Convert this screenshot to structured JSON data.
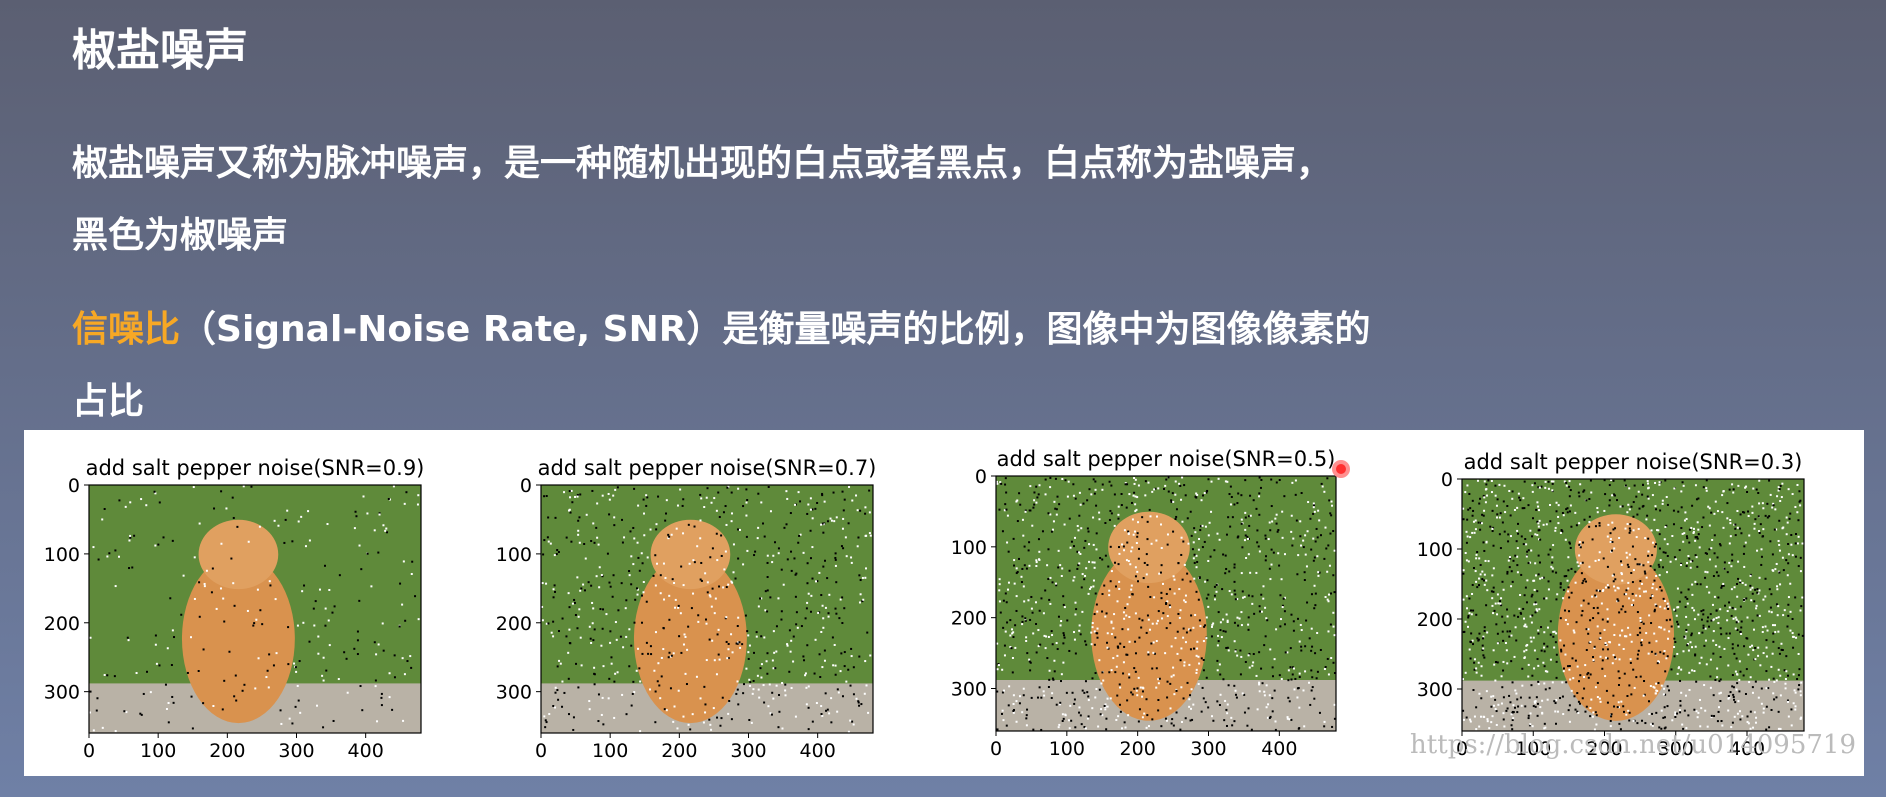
{
  "slide": {
    "title": "椒盐噪声",
    "paragraph1": [
      "椒盐噪声又称为脉冲噪声，是一种随机出现的白点或者黑点，白点称为盐噪声，",
      "黑色为椒噪声"
    ],
    "paragraph2": {
      "highlight": "信噪比",
      "lines": [
        "（Signal-Noise Rate, SNR）是衡量噪声的比例，图像中为图像像素的",
        "占比"
      ]
    }
  },
  "chart_data": [
    {
      "type": "image",
      "title": "add salt pepper noise(SNR=0.9)",
      "xlim": [
        0,
        480
      ],
      "ylim": [
        0,
        360
      ],
      "y_inverted": true,
      "xticks": [
        0,
        100,
        200,
        300,
        400
      ],
      "yticks": [
        0,
        100,
        200,
        300
      ]
    },
    {
      "type": "image",
      "title": "add salt pepper noise(SNR=0.7)",
      "xlim": [
        0,
        480
      ],
      "ylim": [
        0,
        360
      ],
      "y_inverted": true,
      "xticks": [
        0,
        100,
        200,
        300,
        400
      ],
      "yticks": [
        0,
        100,
        200,
        300
      ]
    },
    {
      "type": "image",
      "title": "add salt pepper noise(SNR=0.5)",
      "xlim": [
        0,
        480
      ],
      "ylim": [
        0,
        360
      ],
      "y_inverted": true,
      "xticks": [
        0,
        100,
        200,
        300,
        400
      ],
      "yticks": [
        0,
        100,
        200,
        300
      ]
    },
    {
      "type": "image",
      "title": "add salt pepper noise(SNR=0.3)",
      "xlim": [
        0,
        480
      ],
      "ylim": [
        0,
        360
      ],
      "y_inverted": true,
      "xticks": [
        0,
        100,
        200,
        300,
        400
      ],
      "yticks": [
        0,
        100,
        200,
        300
      ]
    }
  ],
  "watermark": "https://blog.csdn.net/u014095719"
}
